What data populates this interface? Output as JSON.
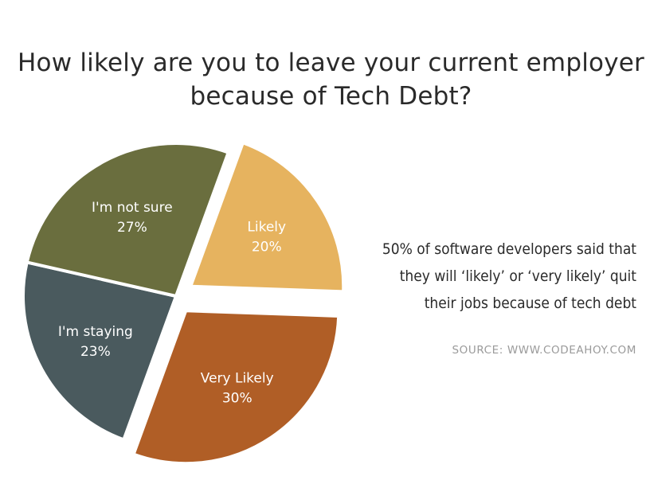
{
  "title": [
    "How likely are you to leave your current employer",
    "because of Tech Debt?"
  ],
  "note": [
    "50% of software developers said that",
    "they will ‘likely’ or ‘very likely’ quit",
    "their jobs because of tech debt"
  ],
  "source": "SOURCE: WWW.CODEAHOY.COM",
  "chart_data": {
    "type": "pie",
    "title": "How likely are you to leave your current employer because of Tech Debt?",
    "slices": [
      {
        "label": "Likely",
        "value": 20,
        "value_label": "20%",
        "color": "#E6B35F",
        "exploded": true
      },
      {
        "label": "Very Likely",
        "value": 30,
        "value_label": "30%",
        "color": "#B05E26",
        "exploded": true
      },
      {
        "label": "I'm staying",
        "value": 23,
        "value_label": "23%",
        "color": "#4A5A5E",
        "exploded": false
      },
      {
        "label": "I'm not sure",
        "value": 27,
        "value_label": "27%",
        "color": "#6A6E3E",
        "exploded": false
      }
    ]
  }
}
